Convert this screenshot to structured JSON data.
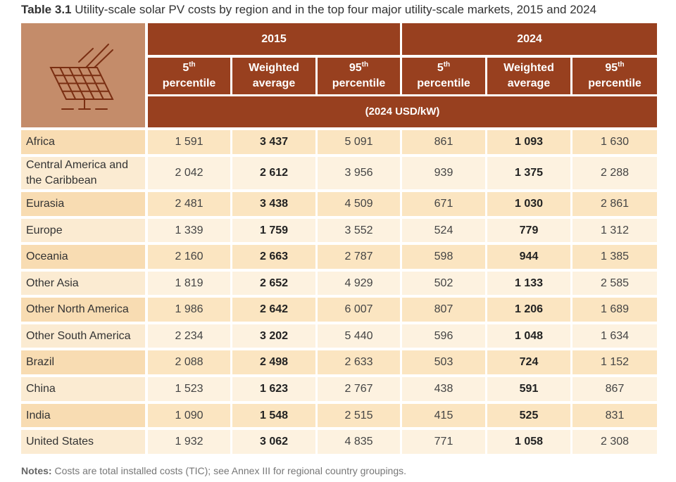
{
  "caption": {
    "label": "Table 3.1",
    "title": "Utility-scale solar PV costs by region and in the top four major utility-scale markets, 2015 and 2024"
  },
  "header": {
    "year_2015": "2015",
    "year_2024": "2024",
    "columns": [
      {
        "line1": "5",
        "sup": "th",
        "line2": "percentile"
      },
      {
        "line1": "Weighted",
        "sup": "",
        "line2": "average"
      },
      {
        "line1": "95",
        "sup": "th",
        "line2": "percentile"
      },
      {
        "line1": "5",
        "sup": "th",
        "line2": "percentile"
      },
      {
        "line1": "Weighted",
        "sup": "",
        "line2": "average"
      },
      {
        "line1": "95",
        "sup": "th",
        "line2": "percentile"
      }
    ],
    "unit": "(2024 USD/kW)",
    "icon": "solar-panel-icon"
  },
  "rows": [
    {
      "region": "Africa",
      "values": [
        "1 591",
        "3 437",
        "5 091",
        "861",
        "1 093",
        "1 630"
      ]
    },
    {
      "region": "Central America and the Caribbean",
      "values": [
        "2 042",
        "2 612",
        "3 956",
        "939",
        "1 375",
        "2 288"
      ]
    },
    {
      "region": "Eurasia",
      "values": [
        "2 481",
        "3 438",
        "4 509",
        "671",
        "1 030",
        "2 861"
      ]
    },
    {
      "region": "Europe",
      "values": [
        "1 339",
        "1 759",
        "3 552",
        "524",
        "779",
        "1 312"
      ]
    },
    {
      "region": "Oceania",
      "values": [
        "2 160",
        "2 663",
        "2 787",
        "598",
        "944",
        "1 385"
      ]
    },
    {
      "region": "Other Asia",
      "values": [
        "1 819",
        "2 652",
        "4 929",
        "502",
        "1 133",
        "2 585"
      ]
    },
    {
      "region": "Other North America",
      "values": [
        "1 986",
        "2 642",
        "6 007",
        "807",
        "1 206",
        "1 689"
      ]
    },
    {
      "region": "Other South America",
      "values": [
        "2 234",
        "3 202",
        "5 440",
        "596",
        "1 048",
        "1 634"
      ]
    },
    {
      "region": "Brazil",
      "values": [
        "2 088",
        "2 498",
        "2 633",
        "503",
        "724",
        "1 152"
      ]
    },
    {
      "region": "China",
      "values": [
        "1 523",
        "1 623",
        "2 767",
        "438",
        "591",
        "867"
      ]
    },
    {
      "region": "India",
      "values": [
        "1 090",
        "1 548",
        "2 515",
        "415",
        "525",
        "831"
      ]
    },
    {
      "region": "United States",
      "values": [
        "1 932",
        "3 062",
        "4 835",
        "771",
        "1 058",
        "2 308"
      ]
    }
  ],
  "notes": {
    "label": "Notes:",
    "text": "Costs are total installed costs (TIC); see Annex III for regional country groupings."
  },
  "colors": {
    "header_dark": "#98401f",
    "corner": "#c48c6a",
    "row_a_label": "#f8dcb2",
    "row_a_value": "#fbe5c1",
    "row_b_label": "#fbebd2",
    "row_b_value": "#fdf2e0"
  }
}
